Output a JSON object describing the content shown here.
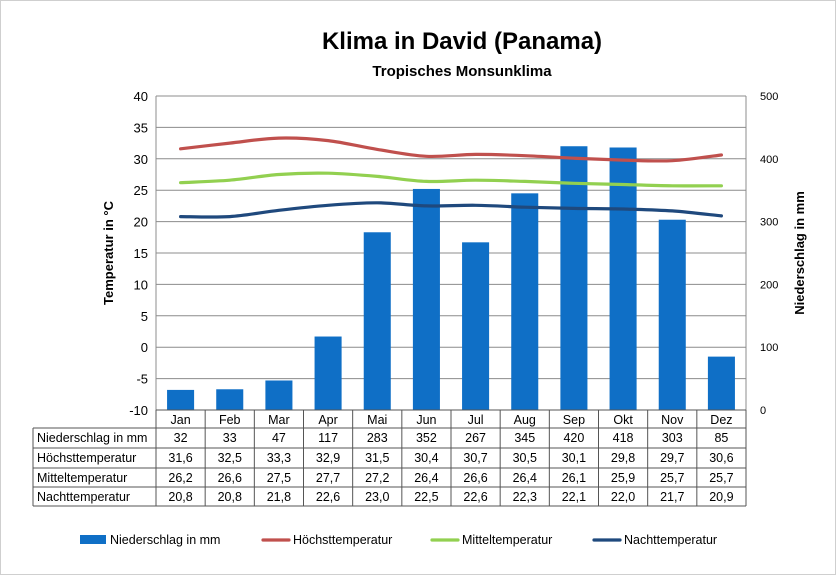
{
  "chart_data": {
    "type": "bar",
    "title": "Klima in David (Panama)",
    "subtitle": "Tropisches Monsunklima",
    "ylabel_left": "Temperatur in °C",
    "ylabel_right": "Niederschlag in mm",
    "ylim_left": [
      -10,
      40
    ],
    "yticks_left": [
      "40",
      "35",
      "30",
      "25",
      "20",
      "15",
      "10",
      "5",
      "0",
      "-5",
      "-10"
    ],
    "ylim_right": [
      0,
      500
    ],
    "yticks_right": [
      "500",
      "400",
      "300",
      "200",
      "100",
      "0"
    ],
    "grid": true,
    "legend_position": "bottom",
    "categories": [
      "Jan",
      "Feb",
      "Mar",
      "Apr",
      "Mai",
      "Jun",
      "Jul",
      "Aug",
      "Sep",
      "Okt",
      "Nov",
      "Dez"
    ],
    "series": [
      {
        "name": "Niederschlag in mm",
        "kind": "bar",
        "axis": "right",
        "color": "#0F6FC6",
        "values": [
          32,
          33,
          47,
          117,
          283,
          352,
          267,
          345,
          420,
          418,
          303,
          85
        ],
        "labels": [
          "32",
          "33",
          "47",
          "117",
          "283",
          "352",
          "267",
          "345",
          "420",
          "418",
          "303",
          "85"
        ]
      },
      {
        "name": "Höchsttemperatur",
        "kind": "line",
        "axis": "left",
        "color": "#C0504D",
        "values": [
          31.6,
          32.5,
          33.3,
          32.9,
          31.5,
          30.4,
          30.7,
          30.5,
          30.1,
          29.8,
          29.7,
          30.6
        ],
        "labels": [
          "31,6",
          "32,5",
          "33,3",
          "32,9",
          "31,5",
          "30,4",
          "30,7",
          "30,5",
          "30,1",
          "29,8",
          "29,7",
          "30,6"
        ]
      },
      {
        "name": "Mitteltemperatur",
        "kind": "line",
        "axis": "left",
        "color": "#92D050",
        "values": [
          26.2,
          26.6,
          27.5,
          27.7,
          27.2,
          26.4,
          26.6,
          26.4,
          26.1,
          25.9,
          25.7,
          25.7
        ],
        "labels": [
          "26,2",
          "26,6",
          "27,5",
          "27,7",
          "27,2",
          "26,4",
          "26,6",
          "26,4",
          "26,1",
          "25,9",
          "25,7",
          "25,7"
        ]
      },
      {
        "name": "Nachttemperatur",
        "kind": "line",
        "axis": "left",
        "color": "#1F497D",
        "values": [
          20.8,
          20.8,
          21.8,
          22.6,
          23.0,
          22.5,
          22.6,
          22.3,
          22.1,
          22.0,
          21.7,
          20.9
        ],
        "labels": [
          "20,8",
          "20,8",
          "21,8",
          "22,6",
          "23,0",
          "22,5",
          "22,6",
          "22,3",
          "22,1",
          "22,0",
          "21,7",
          "20,9"
        ]
      }
    ]
  }
}
